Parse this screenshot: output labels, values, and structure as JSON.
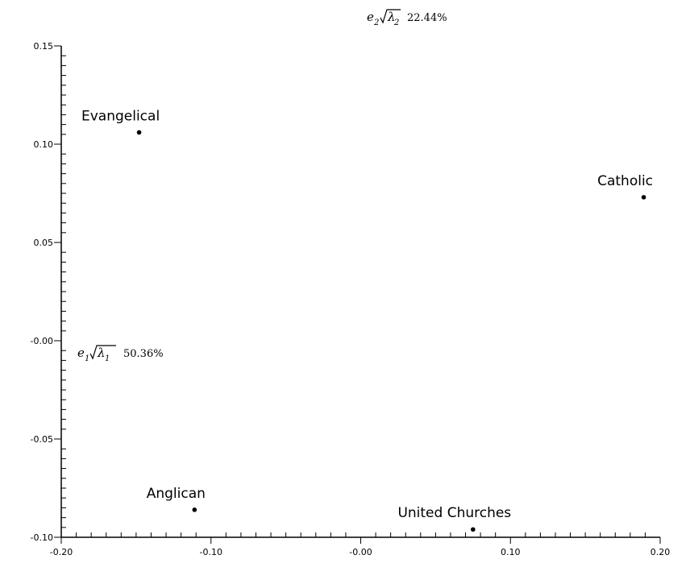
{
  "chart_data": {
    "type": "scatter",
    "title": "",
    "xlim": [
      -0.2,
      0.2
    ],
    "ylim": [
      -0.1,
      0.15
    ],
    "x_ticks": [
      -0.2,
      -0.1,
      0.0,
      0.1,
      0.2
    ],
    "x_tick_labels": [
      "-0.20",
      "-0.10",
      "-0.00",
      "0.10",
      "0.20"
    ],
    "y_ticks": [
      -0.1,
      -0.05,
      0.0,
      0.05,
      0.1,
      0.15
    ],
    "y_tick_labels": [
      "-0.10",
      "-0.05",
      "-0.00",
      "0.05",
      "0.10",
      "0.15"
    ],
    "grid": false,
    "x_axis_title": {
      "symbol": "e",
      "sub": "1",
      "lambda_sub": "1",
      "percent": "50.36%"
    },
    "y_axis_title": {
      "symbol": "e",
      "sub": "2",
      "lambda_sub": "2",
      "percent": "22.44%"
    },
    "points": [
      {
        "label": "Evangelical",
        "x": -0.148,
        "y": 0.106
      },
      {
        "label": "Catholic",
        "x": 0.189,
        "y": 0.073
      },
      {
        "label": "Anglican",
        "x": -0.111,
        "y": -0.086
      },
      {
        "label": "United  Churches",
        "x": 0.075,
        "y": -0.096
      }
    ]
  }
}
